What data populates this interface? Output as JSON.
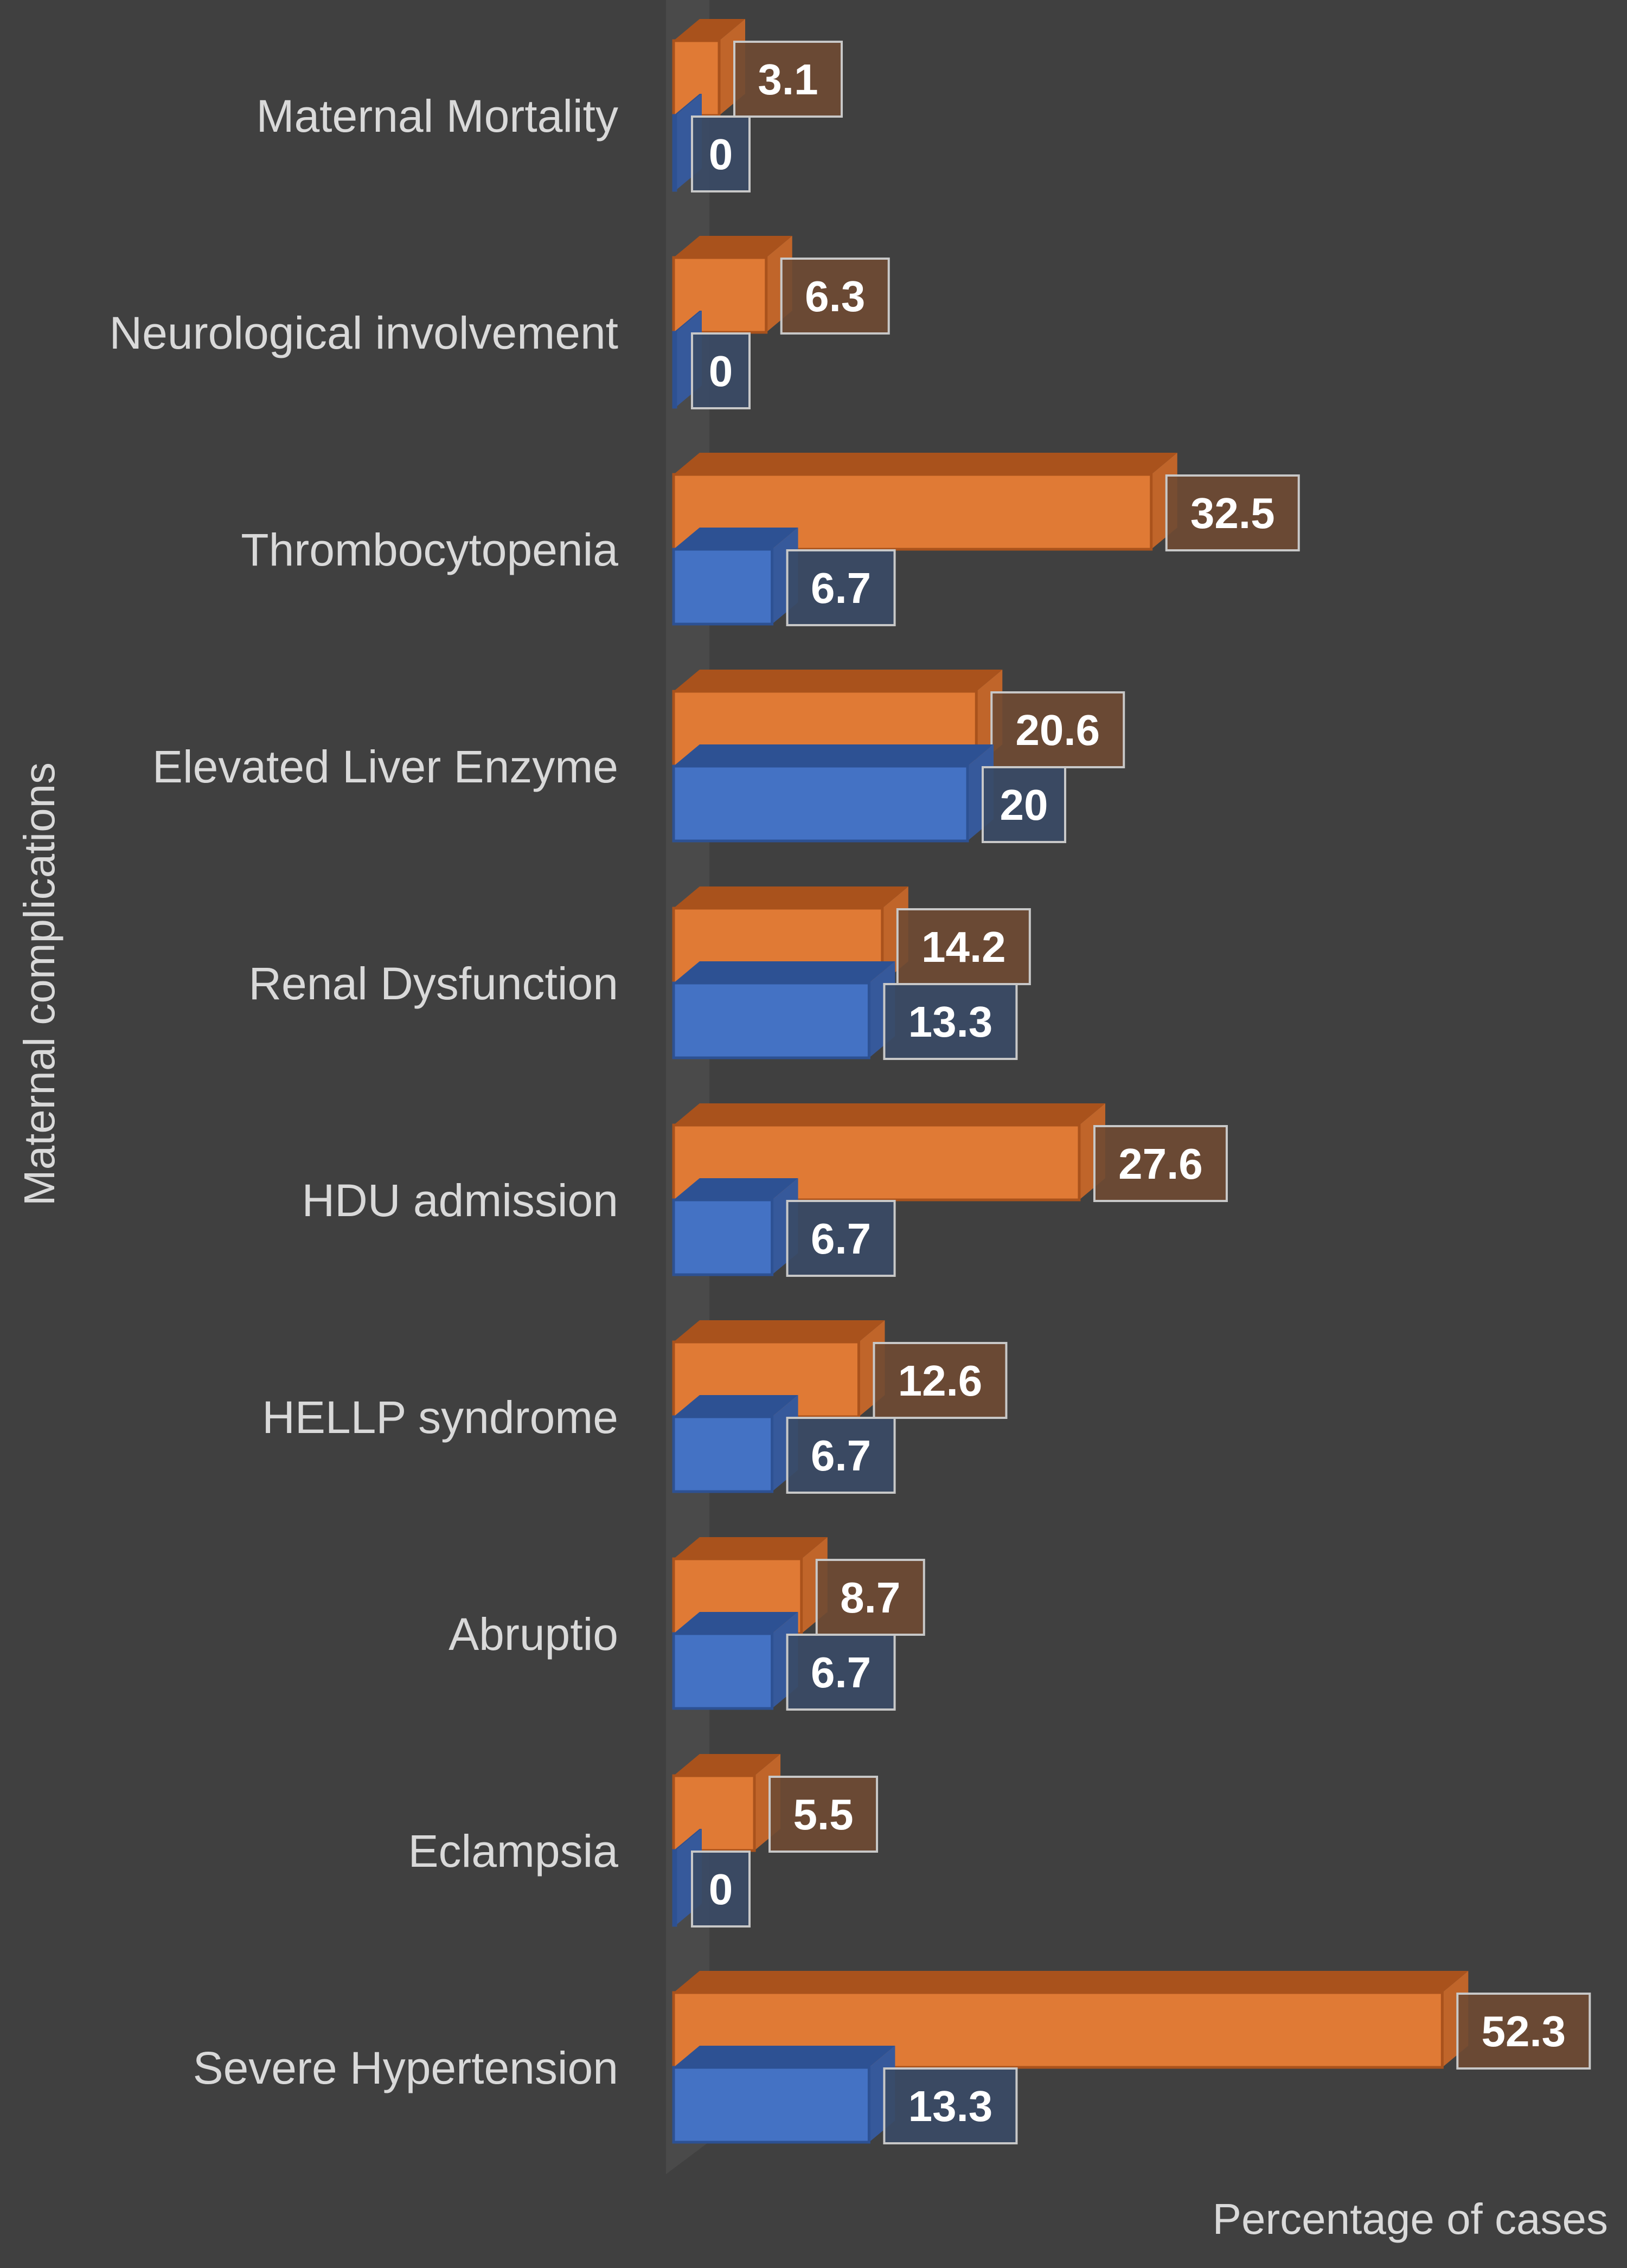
{
  "chart_data": {
    "type": "bar",
    "orientation": "horizontal",
    "style": "3d-clustered",
    "categories": [
      "Maternal Mortality",
      "Neurological involvement",
      "Thrombocytopenia",
      "Elevated Liver Enzyme",
      "Renal Dysfunction",
      "HDU admission",
      "HELLP syndrome",
      "Abruptio",
      "Eclampsia",
      "Severe Hypertension"
    ],
    "series": [
      {
        "values": [
          3.1,
          6.3,
          32.5,
          20.6,
          14.2,
          27.6,
          12.6,
          8.7,
          5.5,
          52.3
        ],
        "color": "#e07a35"
      },
      {
        "values": [
          0,
          0,
          6.7,
          20,
          13.3,
          6.7,
          6.7,
          6.7,
          0,
          13.3
        ],
        "color": "#4472c4"
      }
    ],
    "xlabel": "Percentage of cases",
    "ylabel": "Maternal complications",
    "xlim": [
      0,
      55
    ],
    "grid": false,
    "data_labels": true,
    "background": "#404040"
  }
}
